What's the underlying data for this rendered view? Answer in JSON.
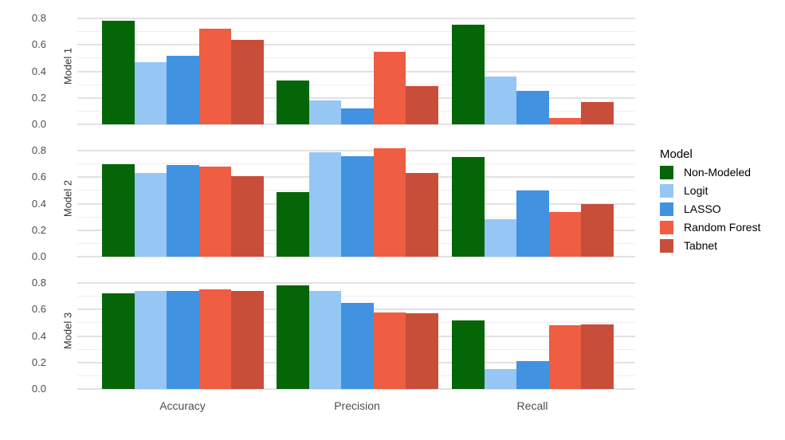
{
  "chart_data": {
    "type": "bar",
    "title": "",
    "facet_rows": [
      "Model 1",
      "Model 2",
      "Model 3"
    ],
    "categories": [
      "Accuracy",
      "Precision",
      "Recall"
    ],
    "y_ticks": [
      "0.0",
      "0.2",
      "0.4",
      "0.6",
      "0.8"
    ],
    "y_tick_values": [
      0.0,
      0.2,
      0.4,
      0.6,
      0.8
    ],
    "y_minor_values": [
      0.1,
      0.3,
      0.5,
      0.7
    ],
    "ylim": [
      0,
      0.885
    ],
    "grid": "horizontal major + minor, no vertical grid",
    "legend": {
      "title": "Model",
      "position": "right",
      "entries": [
        {
          "label": "Non-Modeled",
          "color": "#056608"
        },
        {
          "label": "Logit",
          "color": "#96c6f4"
        },
        {
          "label": "LASSO",
          "color": "#4292e2"
        },
        {
          "label": "Random Forest",
          "color": "#ef5d42"
        },
        {
          "label": "Tabnet",
          "color": "#c94e3a"
        }
      ]
    },
    "series": [
      {
        "name": "Non-Modeled",
        "color": "#056608",
        "values": [
          [
            0.78,
            0.33,
            0.75
          ],
          [
            0.7,
            0.49,
            0.75
          ],
          [
            0.72,
            0.78,
            0.52
          ]
        ]
      },
      {
        "name": "Logit",
        "color": "#96c6f4",
        "values": [
          [
            0.47,
            0.18,
            0.36
          ],
          [
            0.63,
            0.79,
            0.28
          ],
          [
            0.74,
            0.74,
            0.15
          ]
        ]
      },
      {
        "name": "LASSO",
        "color": "#4292e2",
        "values": [
          [
            0.52,
            0.12,
            0.25
          ],
          [
            0.69,
            0.76,
            0.5
          ],
          [
            0.74,
            0.65,
            0.21
          ]
        ]
      },
      {
        "name": "Random Forest",
        "color": "#ef5d42",
        "values": [
          [
            0.72,
            0.55,
            0.05
          ],
          [
            0.68,
            0.82,
            0.34
          ],
          [
            0.75,
            0.58,
            0.48
          ]
        ]
      },
      {
        "name": "Tabnet",
        "color": "#c94e3a",
        "values": [
          [
            0.64,
            0.29,
            0.17
          ],
          [
            0.61,
            0.63,
            0.4
          ],
          [
            0.74,
            0.57,
            0.49
          ]
        ]
      }
    ],
    "colors": {
      "grid_major": "#e2e2e2",
      "grid_minor": "#efefef",
      "axis_text": "#4d4d4d",
      "facet_text": "#333333",
      "background": "#ffffff"
    }
  }
}
